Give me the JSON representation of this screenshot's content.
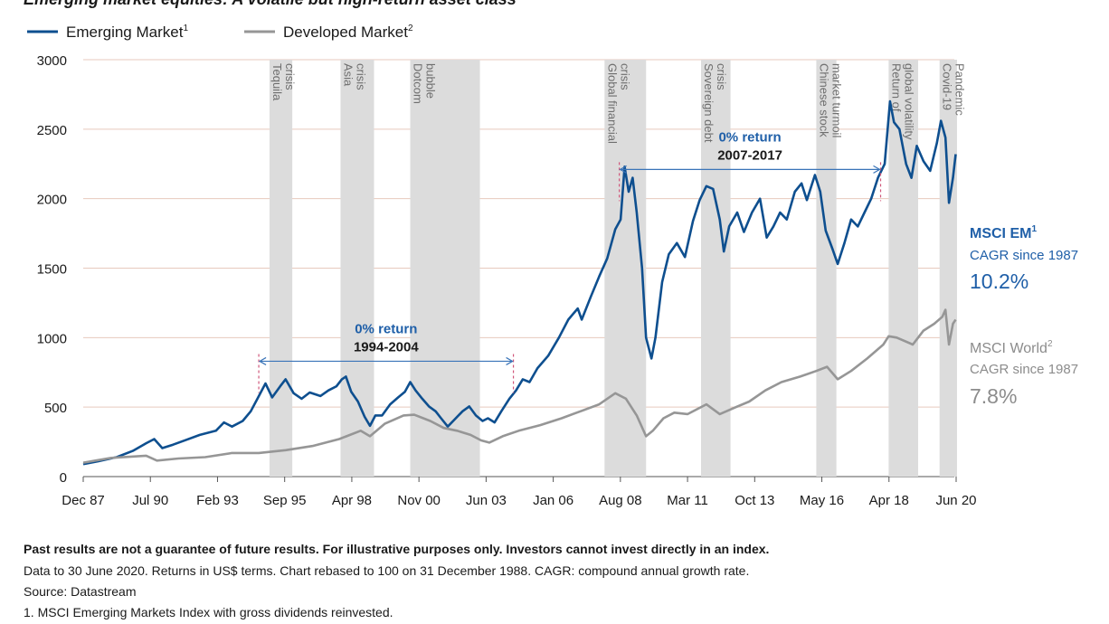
{
  "chart_data": {
    "type": "line",
    "title": "Emerging market equities: A volatile but high-return asset class",
    "x_range": [
      "1987-12",
      "2020-06"
    ],
    "x_ticks": [
      "Dec 87",
      "Jul 90",
      "Feb 93",
      "Sep 95",
      "Apr 98",
      "Nov 00",
      "Jun 03",
      "Jan 06",
      "Aug 08",
      "Mar 11",
      "Oct 13",
      "May 16",
      "Apr 18",
      "Jun 20"
    ],
    "ylim": [
      0,
      3000
    ],
    "y_ticks": [
      "0",
      "500",
      "1000",
      "1500",
      "2000",
      "2500",
      "3000"
    ],
    "grid": "horizontal",
    "legend": "top-left",
    "colors": {
      "em": "#0e4f8f",
      "dm": "#969696",
      "band": "#dcdcdc",
      "bracket": "#3a74b8",
      "marker": "#d0567a",
      "annotation_blue": "#1f5fa8"
    },
    "series": [
      {
        "name": "Emerging Market",
        "legend_sup": "1",
        "color": "#0e4f8f",
        "points": [
          [
            1987.95,
            90
          ],
          [
            1988.5,
            110
          ],
          [
            1989.2,
            140
          ],
          [
            1989.8,
            185
          ],
          [
            1990.3,
            240
          ],
          [
            1990.6,
            270
          ],
          [
            1990.9,
            205
          ],
          [
            1991.3,
            230
          ],
          [
            1991.8,
            265
          ],
          [
            1992.3,
            300
          ],
          [
            1992.9,
            330
          ],
          [
            1993.2,
            390
          ],
          [
            1993.5,
            360
          ],
          [
            1993.9,
            400
          ],
          [
            1994.2,
            470
          ],
          [
            1994.45,
            560
          ],
          [
            1994.75,
            670
          ],
          [
            1995.0,
            570
          ],
          [
            1995.3,
            650
          ],
          [
            1995.5,
            700
          ],
          [
            1995.8,
            600
          ],
          [
            1996.1,
            560
          ],
          [
            1996.4,
            605
          ],
          [
            1996.8,
            580
          ],
          [
            1997.1,
            620
          ],
          [
            1997.4,
            650
          ],
          [
            1997.6,
            700
          ],
          [
            1997.75,
            720
          ],
          [
            1997.95,
            610
          ],
          [
            1998.2,
            540
          ],
          [
            1998.45,
            430
          ],
          [
            1998.65,
            365
          ],
          [
            1998.85,
            440
          ],
          [
            1999.1,
            440
          ],
          [
            1999.4,
            520
          ],
          [
            1999.7,
            570
          ],
          [
            1999.95,
            610
          ],
          [
            2000.15,
            680
          ],
          [
            2000.35,
            620
          ],
          [
            2000.6,
            560
          ],
          [
            2000.85,
            505
          ],
          [
            2001.1,
            470
          ],
          [
            2001.3,
            420
          ],
          [
            2001.55,
            360
          ],
          [
            2001.8,
            410
          ],
          [
            2002.1,
            470
          ],
          [
            2002.35,
            505
          ],
          [
            2002.6,
            440
          ],
          [
            2002.85,
            400
          ],
          [
            2003.05,
            420
          ],
          [
            2003.3,
            390
          ],
          [
            2003.55,
            470
          ],
          [
            2003.85,
            560
          ],
          [
            2004.1,
            620
          ],
          [
            2004.35,
            700
          ],
          [
            2004.6,
            680
          ],
          [
            2004.9,
            780
          ],
          [
            2005.3,
            870
          ],
          [
            2005.7,
            1000
          ],
          [
            2006.05,
            1130
          ],
          [
            2006.4,
            1210
          ],
          [
            2006.55,
            1130
          ],
          [
            2006.9,
            1300
          ],
          [
            2007.2,
            1440
          ],
          [
            2007.5,
            1570
          ],
          [
            2007.8,
            1780
          ],
          [
            2008.0,
            1850
          ],
          [
            2008.15,
            2230
          ],
          [
            2008.3,
            2050
          ],
          [
            2008.45,
            2150
          ],
          [
            2008.6,
            1900
          ],
          [
            2008.8,
            1500
          ],
          [
            2008.95,
            1000
          ],
          [
            2009.15,
            850
          ],
          [
            2009.3,
            1000
          ],
          [
            2009.55,
            1400
          ],
          [
            2009.8,
            1600
          ],
          [
            2010.1,
            1680
          ],
          [
            2010.4,
            1580
          ],
          [
            2010.7,
            1840
          ],
          [
            2010.95,
            1990
          ],
          [
            2011.2,
            2090
          ],
          [
            2011.45,
            2070
          ],
          [
            2011.7,
            1850
          ],
          [
            2011.85,
            1620
          ],
          [
            2012.05,
            1800
          ],
          [
            2012.35,
            1900
          ],
          [
            2012.6,
            1760
          ],
          [
            2012.9,
            1900
          ],
          [
            2013.2,
            2000
          ],
          [
            2013.45,
            1720
          ],
          [
            2013.7,
            1800
          ],
          [
            2013.95,
            1900
          ],
          [
            2014.2,
            1850
          ],
          [
            2014.5,
            2050
          ],
          [
            2014.75,
            2110
          ],
          [
            2014.95,
            1990
          ],
          [
            2015.25,
            2170
          ],
          [
            2015.45,
            2050
          ],
          [
            2015.65,
            1770
          ],
          [
            2015.9,
            1640
          ],
          [
            2016.1,
            1530
          ],
          [
            2016.35,
            1680
          ],
          [
            2016.6,
            1850
          ],
          [
            2016.85,
            1800
          ],
          [
            2017.1,
            1900
          ],
          [
            2017.35,
            2000
          ],
          [
            2017.6,
            2150
          ],
          [
            2017.85,
            2250
          ],
          [
            2018.05,
            2700
          ],
          [
            2018.2,
            2550
          ],
          [
            2018.4,
            2500
          ],
          [
            2018.65,
            2250
          ],
          [
            2018.85,
            2150
          ],
          [
            2019.05,
            2380
          ],
          [
            2019.3,
            2270
          ],
          [
            2019.55,
            2200
          ],
          [
            2019.8,
            2400
          ],
          [
            2019.95,
            2560
          ],
          [
            2020.12,
            2440
          ],
          [
            2020.25,
            1970
          ],
          [
            2020.4,
            2150
          ],
          [
            2020.5,
            2320
          ]
        ]
      },
      {
        "name": "Developed Market",
        "legend_sup": "2",
        "color": "#969696",
        "points": [
          [
            1987.95,
            100
          ],
          [
            1989.0,
            135
          ],
          [
            1990.3,
            150
          ],
          [
            1990.7,
            115
          ],
          [
            1991.5,
            130
          ],
          [
            1992.5,
            140
          ],
          [
            1993.5,
            170
          ],
          [
            1994.5,
            170
          ],
          [
            1995.5,
            190
          ],
          [
            1996.5,
            220
          ],
          [
            1997.5,
            270
          ],
          [
            1998.3,
            330
          ],
          [
            1998.65,
            290
          ],
          [
            1999.2,
            380
          ],
          [
            1999.9,
            440
          ],
          [
            2000.3,
            445
          ],
          [
            2000.9,
            400
          ],
          [
            2001.4,
            350
          ],
          [
            2001.9,
            330
          ],
          [
            2002.4,
            300
          ],
          [
            2002.8,
            260
          ],
          [
            2003.1,
            245
          ],
          [
            2003.6,
            290
          ],
          [
            2004.2,
            330
          ],
          [
            2005.0,
            370
          ],
          [
            2005.8,
            420
          ],
          [
            2006.5,
            470
          ],
          [
            2007.2,
            520
          ],
          [
            2007.8,
            600
          ],
          [
            2008.2,
            560
          ],
          [
            2008.6,
            440
          ],
          [
            2008.95,
            290
          ],
          [
            2009.2,
            330
          ],
          [
            2009.6,
            420
          ],
          [
            2010.0,
            460
          ],
          [
            2010.5,
            450
          ],
          [
            2011.2,
            520
          ],
          [
            2011.7,
            450
          ],
          [
            2012.3,
            500
          ],
          [
            2012.8,
            540
          ],
          [
            2013.4,
            620
          ],
          [
            2014.0,
            680
          ],
          [
            2014.7,
            720
          ],
          [
            2015.3,
            760
          ],
          [
            2015.7,
            790
          ],
          [
            2016.1,
            700
          ],
          [
            2016.6,
            760
          ],
          [
            2017.2,
            850
          ],
          [
            2017.8,
            950
          ],
          [
            2018.0,
            1010
          ],
          [
            2018.3,
            1000
          ],
          [
            2018.9,
            950
          ],
          [
            2019.3,
            1050
          ],
          [
            2019.7,
            1100
          ],
          [
            2020.0,
            1150
          ],
          [
            2020.12,
            1200
          ],
          [
            2020.25,
            950
          ],
          [
            2020.4,
            1100
          ],
          [
            2020.5,
            1130
          ]
        ]
      }
    ],
    "bands": [
      {
        "label": "Tequila crisis",
        "start": 1994.9,
        "end": 1995.75
      },
      {
        "label": "Asia crisis",
        "start": 1997.55,
        "end": 1998.8
      },
      {
        "label": "Dotcom bubble",
        "start": 2000.15,
        "end": 2002.75
      },
      {
        "label": "Global financial crisis",
        "start": 2007.4,
        "end": 2008.95
      },
      {
        "label": "Sovereign debt crisis",
        "start": 2011.0,
        "end": 2012.1
      },
      {
        "label": "Chinese stock market turmoil",
        "start": 2015.3,
        "end": 2016.05
      },
      {
        "label": "Return of global volatility",
        "start": 2018.0,
        "end": 2019.1
      },
      {
        "label": "Covid-19 Pandemic",
        "start": 2019.9,
        "end": 2020.55
      }
    ],
    "annotations": [
      {
        "title": "0% return",
        "period": "1994-2004",
        "from": 1994.5,
        "to": 2004.0,
        "level": 830
      },
      {
        "title": "0% return",
        "period": "2007-2017",
        "from": 2007.95,
        "to": 2017.7,
        "level": 2210
      }
    ],
    "side_labels": [
      {
        "name": "MSCI EM",
        "sup": "1",
        "subtitle": "CAGR since 1987",
        "value": "10.2%",
        "color": "#1f5fa8"
      },
      {
        "name": "MSCI World",
        "sup": "2",
        "subtitle": "CAGR since 1987",
        "value": "7.8%",
        "color": "#8c8c8c"
      }
    ]
  },
  "notes": {
    "bold": "Past results are not a guarantee of future results. For illustrative purposes only. Investors cannot invest directly in an index.",
    "line1": "Data to 30 June 2020. Returns in US$ terms. Chart rebased to 100 on 31 December 1988. CAGR: compound annual growth rate.",
    "line2": "Source: Datastream",
    "line3": "1. MSCI Emerging Markets Index with gross dividends reinvested."
  }
}
